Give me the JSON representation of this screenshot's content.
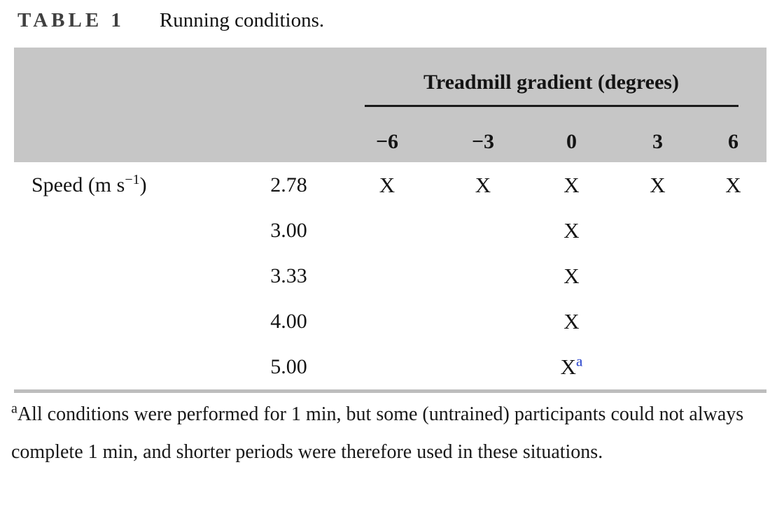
{
  "caption": {
    "label": "TABLE 1",
    "text": "Running conditions."
  },
  "table": {
    "group_header": "Treadmill gradient (degrees)",
    "gradient_columns": [
      "−6",
      "−3",
      "0",
      "3",
      "6"
    ],
    "row_header": {
      "prefix": "Speed (m s",
      "superscript": "−1",
      "suffix": ")"
    },
    "rows": [
      {
        "speed": "2.78",
        "marks": [
          "X",
          "X",
          "X",
          "X",
          "X"
        ],
        "sups": [
          "",
          "",
          "",
          "",
          ""
        ]
      },
      {
        "speed": "3.00",
        "marks": [
          "",
          "",
          "X",
          "",
          ""
        ],
        "sups": [
          "",
          "",
          "",
          "",
          ""
        ]
      },
      {
        "speed": "3.33",
        "marks": [
          "",
          "",
          "X",
          "",
          ""
        ],
        "sups": [
          "",
          "",
          "",
          "",
          ""
        ]
      },
      {
        "speed": "4.00",
        "marks": [
          "",
          "",
          "X",
          "",
          ""
        ],
        "sups": [
          "",
          "",
          "",
          "",
          ""
        ]
      },
      {
        "speed": "5.00",
        "marks": [
          "",
          "",
          "X",
          "",
          ""
        ],
        "sups": [
          "",
          "",
          "a",
          "",
          ""
        ]
      }
    ]
  },
  "footnote": {
    "marker": "a",
    "text": "All conditions were performed for 1 min, but some (untrained) participants could not always complete 1 min, and shorter periods were therefore used in these situations."
  },
  "colors": {
    "header_band": "#c6c6c6",
    "caption_label": "#3f3f3f",
    "group_rule": "#1a1a1a",
    "bottom_rule": "#bdbdbd",
    "footnote_marker_blue": "#2440cc",
    "text": "#141414"
  }
}
